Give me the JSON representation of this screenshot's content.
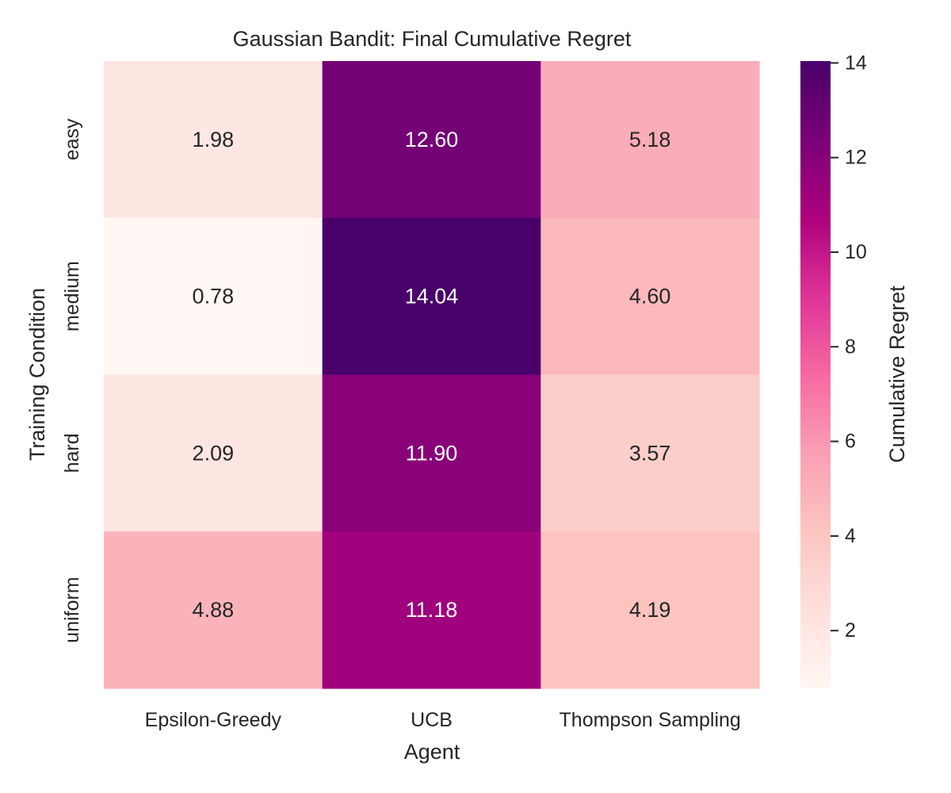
{
  "chart_data": {
    "type": "heatmap",
    "title": "Gaussian Bandit: Final Cumulative Regret",
    "xlabel": "Agent",
    "ylabel": "Training Condition",
    "x_categories": [
      "Epsilon-Greedy",
      "UCB",
      "Thompson Sampling"
    ],
    "y_categories": [
      "easy",
      "medium",
      "hard",
      "uniform"
    ],
    "values": [
      [
        1.98,
        12.6,
        5.18
      ],
      [
        0.78,
        14.04,
        4.6
      ],
      [
        2.09,
        11.9,
        3.57
      ],
      [
        4.88,
        11.18,
        4.19
      ]
    ],
    "value_labels": [
      [
        "1.98",
        "12.60",
        "5.18"
      ],
      [
        "0.78",
        "14.04",
        "4.60"
      ],
      [
        "2.09",
        "11.90",
        "3.57"
      ],
      [
        "4.88",
        "11.18",
        "4.19"
      ]
    ],
    "colorbar": {
      "label": "Cumulative Regret",
      "range": [
        0.78,
        14.04
      ],
      "ticks": [
        2,
        4,
        6,
        8,
        10,
        12,
        14
      ],
      "tick_labels": [
        "2",
        "4",
        "6",
        "8",
        "10",
        "12",
        "14"
      ]
    },
    "colormap_stops": [
      "#fff7f3",
      "#fde0dd",
      "#fcc5c0",
      "#fa9fb5",
      "#f768a1",
      "#dd3497",
      "#ae017e",
      "#7a0177",
      "#49006a"
    ],
    "text_colors": {
      "dark": "#262626",
      "light": "#ffffff"
    },
    "grid": false
  }
}
